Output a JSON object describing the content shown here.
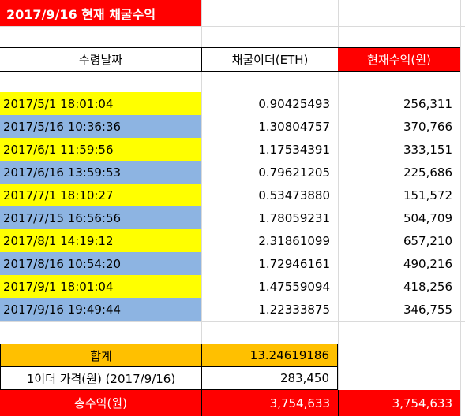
{
  "title": "2017/9/16 현재 채굴수익",
  "headers": {
    "date": "수령날짜",
    "mined": "채굴이더(ETH)",
    "profit": "현재수익(원)"
  },
  "rows": [
    {
      "date": "2017/5/1 18:01:04",
      "mined": "0.90425493",
      "profit": "256,311"
    },
    {
      "date": "2017/5/16 10:36:36",
      "mined": "1.30804757",
      "profit": "370,766"
    },
    {
      "date": "2017/6/1 11:59:56",
      "mined": "1.17534391",
      "profit": "333,151"
    },
    {
      "date": "2017/6/16 13:59:53",
      "mined": "0.79621205",
      "profit": "225,686"
    },
    {
      "date": "2017/7/1 18:10:27",
      "mined": "0.53473880",
      "profit": "151,572"
    },
    {
      "date": "2017/7/15 16:56:56",
      "mined": "1.78059231",
      "profit": "504,709"
    },
    {
      "date": "2017/8/1 14:19:12",
      "mined": "2.31861099",
      "profit": "657,210"
    },
    {
      "date": "2017/8/16 10:54:20",
      "mined": "1.72946161",
      "profit": "490,216"
    },
    {
      "date": "2017/9/1 18:01:04",
      "mined": "1.47559094",
      "profit": "418,256"
    },
    {
      "date": "2017/9/16 19:49:44",
      "mined": "1.22333875",
      "profit": "346,755"
    }
  ],
  "summary": {
    "total_label": "합계",
    "total_value": "13.24619186",
    "price_label": "1이더 가격(원) (2017/9/16)",
    "price_value": "283,450",
    "grand_label": "총수익(원)",
    "grand_value": "3,754,633",
    "grand_value_right": "3,754,633"
  },
  "colors": {
    "title_bg": "#ff0000",
    "header_profit_bg": "#ff0000",
    "row_yellow": "#ffff00",
    "row_blue": "#8db4e2",
    "total_bg": "#ffc000",
    "grand_bg": "#ff0000"
  }
}
